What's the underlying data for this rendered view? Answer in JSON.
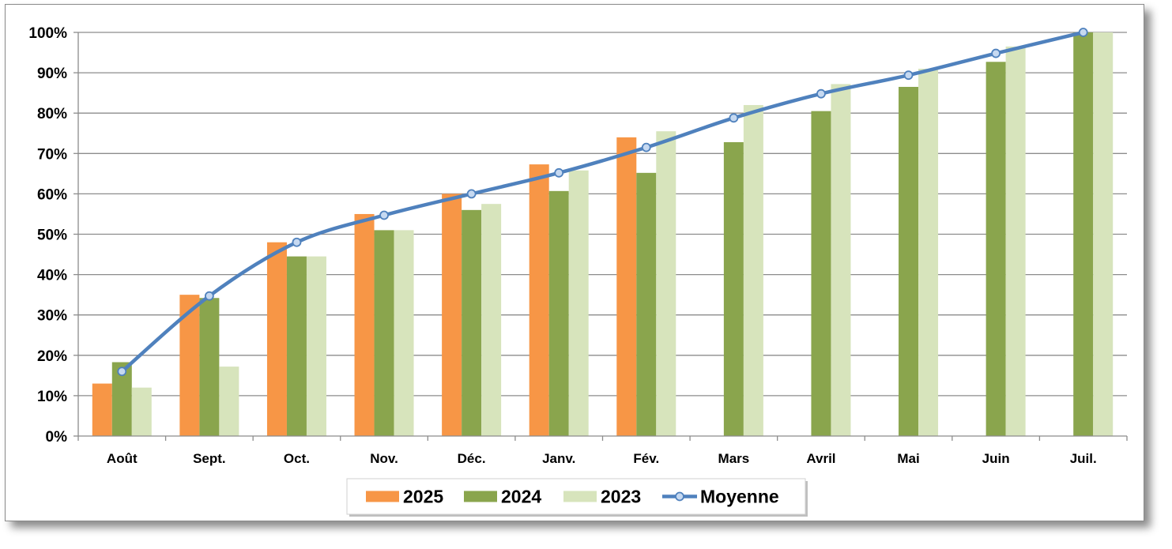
{
  "chart_data": {
    "type": "bar",
    "title": "",
    "xlabel": "",
    "ylabel": "",
    "ylim": [
      0,
      100
    ],
    "y_ticks": [
      "0%",
      "10%",
      "20%",
      "30%",
      "40%",
      "50%",
      "60%",
      "70%",
      "80%",
      "90%",
      "100%"
    ],
    "grid": "horizontal",
    "legend_position": "bottom",
    "categories": [
      "Août",
      "Sept.",
      "Oct.",
      "Nov.",
      "Déc.",
      "Janv.",
      "Fév.",
      "Mars",
      "Avril",
      "Mai",
      "Juin",
      "Juil."
    ],
    "series": [
      {
        "name": "2025",
        "type": "bar",
        "color": "#f79646",
        "values": [
          13,
          35,
          48,
          55,
          60,
          67.3,
          74,
          null,
          null,
          null,
          null,
          null
        ]
      },
      {
        "name": "2024",
        "type": "bar",
        "color": "#8aa54d",
        "values": [
          18.3,
          34.2,
          44.5,
          51,
          56,
          60.7,
          65.2,
          72.8,
          80.5,
          86.5,
          92.7,
          100
        ]
      },
      {
        "name": "2023",
        "type": "bar",
        "color": "#d7e4bc",
        "values": [
          12,
          17.2,
          44.5,
          51,
          57.5,
          65.8,
          75.5,
          82,
          87.2,
          91,
          96.5,
          100
        ]
      },
      {
        "name": "Moyenne",
        "type": "line",
        "color": "#4f81bd",
        "values": [
          16,
          34.7,
          48,
          54.7,
          60,
          65.2,
          71.5,
          78.8,
          84.8,
          89.4,
          94.8,
          100
        ]
      }
    ]
  }
}
